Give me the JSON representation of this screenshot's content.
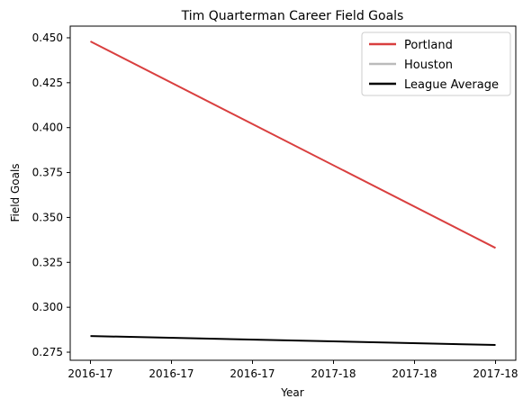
{
  "chart_data": {
    "type": "line",
    "title": "Tim Quarterman Career Field Goals",
    "xlabel": "Year",
    "ylabel": "Field Goals",
    "x_tick_labels": [
      "2016-17",
      "2016-17",
      "2016-17",
      "2017-18",
      "2017-18",
      "2017-18"
    ],
    "xlim": [
      -0.25,
      5.25
    ],
    "ylim": [
      0.2705,
      0.4565
    ],
    "y_ticks": [
      0.275,
      0.3,
      0.325,
      0.35,
      0.375,
      0.4,
      0.425,
      0.45
    ],
    "y_tick_labels": [
      "0.275",
      "0.300",
      "0.325",
      "0.350",
      "0.375",
      "0.400",
      "0.425",
      "0.450"
    ],
    "grid": false,
    "legend_position": "top-right",
    "series": [
      {
        "name": "Portland",
        "color": "#d93f3f",
        "x": [
          0,
          5
        ],
        "y": [
          0.448,
          0.333
        ]
      },
      {
        "name": "Houston",
        "color": "#bbbbbb",
        "x": [],
        "y": []
      },
      {
        "name": "League Average",
        "color": "#000000",
        "x": [
          0,
          5
        ],
        "y": [
          0.284,
          0.279
        ]
      }
    ]
  }
}
